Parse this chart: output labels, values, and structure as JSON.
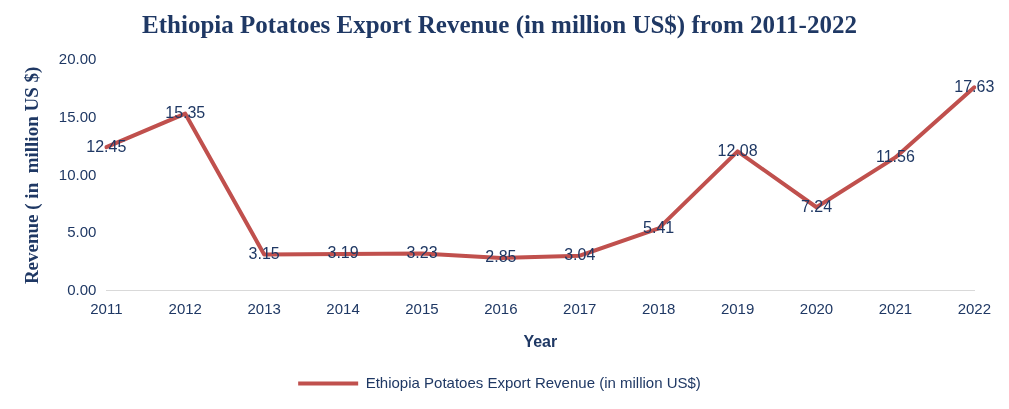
{
  "chart_data": {
    "type": "line",
    "title": "Ethiopia Potatoes Export Revenue (in million US$) from 2011-2022",
    "xlabel": "Year",
    "ylabel": "Revenue ( in  million US $)",
    "categories": [
      "2011",
      "2012",
      "2013",
      "2014",
      "2015",
      "2016",
      "2017",
      "2018",
      "2019",
      "2020",
      "2021",
      "2022"
    ],
    "series": [
      {
        "name": "Ethiopia Potatoes Export Revenue (in million US$)",
        "color": "#c0504d",
        "values": [
          12.45,
          15.35,
          3.15,
          3.19,
          3.23,
          2.85,
          3.04,
          5.41,
          12.08,
          7.24,
          11.56,
          17.63
        ]
      }
    ],
    "ylim": [
      0,
      20
    ],
    "yticks": [
      {
        "value": 0,
        "label": "0.00"
      },
      {
        "value": 5,
        "label": "5.00"
      },
      {
        "value": 10,
        "label": "10.00"
      },
      {
        "value": 15,
        "label": "15.00"
      },
      {
        "value": 20,
        "label": "20.00"
      }
    ],
    "data_labels": true,
    "grid": false,
    "legend": "bottom",
    "marker": "none",
    "line_style": "solid"
  }
}
